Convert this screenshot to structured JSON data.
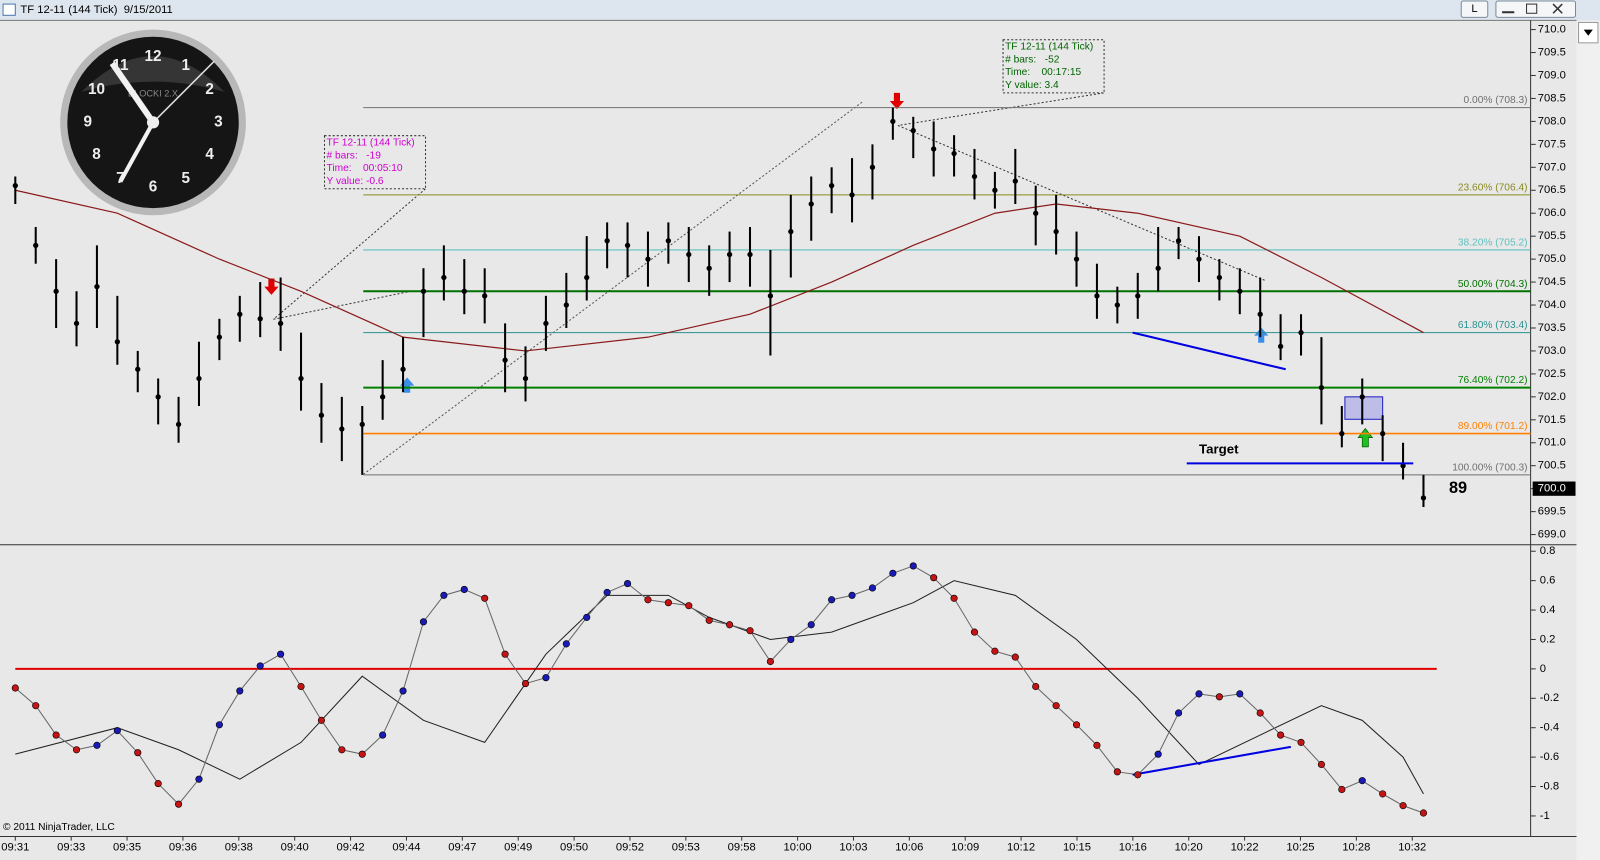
{
  "window": {
    "title": "TF 12-11 (144 Tick)  9/15/2011",
    "buttons": [
      "L"
    ]
  },
  "clock": {
    "numerals": [
      "12",
      "1",
      "2",
      "3",
      "4",
      "5",
      "6",
      "7",
      "8",
      "9",
      "10",
      "11"
    ],
    "brand": "BLOCKI 2.X"
  },
  "chart_data": [
    {
      "type": "ohlc",
      "ylim": [
        698.8,
        710.2
      ],
      "yticks": [
        {
          "value": 710,
          "label": "710.0"
        },
        709.5,
        {
          "value": 709,
          "label": "709.0"
        },
        708.5,
        {
          "value": 708,
          "label": "708.0"
        },
        707.5,
        {
          "value": 707,
          "label": "707.0"
        },
        706.5,
        {
          "value": 706,
          "label": "706.0"
        },
        705.5,
        {
          "value": 705,
          "label": "705.0"
        },
        704.5,
        {
          "value": 704,
          "label": "704.0"
        },
        703.5,
        {
          "value": 703,
          "label": "703.0"
        },
        702.5,
        {
          "value": 702,
          "label": "702.0"
        },
        701.5,
        {
          "value": 701,
          "label": "701.0"
        },
        700.5,
        {
          "value": 700,
          "label": "700.0"
        },
        699.5,
        {
          "value": 699,
          "label": "699.0"
        }
      ],
      "grid": false,
      "color": "#000000",
      "high": [
        706.8,
        705.7,
        705.0,
        704.3,
        705.3,
        704.2,
        703.0,
        702.4,
        702.0,
        703.2,
        703.7,
        704.2,
        704.5,
        704.6,
        703.4,
        702.3,
        702.0,
        701.8,
        702.8,
        703.3,
        704.8,
        705.3,
        705.0,
        704.8,
        703.6,
        703.1,
        704.2,
        704.7,
        705.5,
        705.8,
        705.8,
        705.6,
        705.8,
        705.7,
        705.3,
        705.6,
        705.7,
        705.2,
        706.4,
        706.8,
        707.0,
        707.2,
        707.5,
        708.3,
        708.1,
        708.0,
        707.7,
        707.4,
        706.9,
        707.4,
        706.6,
        706.4,
        705.6,
        704.9,
        704.4,
        704.7,
        705.7,
        705.7,
        705.5,
        705.0,
        704.8,
        704.6,
        703.8,
        703.8,
        703.3,
        701.8,
        702.4,
        701.6,
        701.0,
        700.3
      ],
      "low": [
        706.2,
        704.9,
        703.5,
        703.1,
        703.5,
        702.7,
        702.1,
        701.4,
        701.0,
        701.8,
        702.8,
        703.2,
        703.3,
        703.0,
        701.7,
        701.0,
        700.6,
        700.3,
        701.5,
        702.1,
        703.3,
        704.1,
        703.8,
        703.6,
        702.1,
        701.9,
        703.0,
        703.5,
        704.1,
        704.8,
        704.6,
        704.4,
        704.9,
        704.5,
        704.2,
        704.5,
        704.4,
        702.9,
        704.6,
        705.4,
        706.0,
        705.8,
        706.3,
        707.6,
        707.2,
        706.8,
        706.8,
        706.3,
        706.1,
        706.2,
        705.3,
        705.1,
        704.4,
        703.7,
        703.6,
        703.7,
        704.3,
        705.0,
        704.5,
        704.1,
        703.8,
        703.3,
        702.8,
        702.9,
        701.4,
        700.9,
        701.4,
        700.6,
        700.2,
        699.6
      ],
      "close": [
        706.6,
        705.3,
        704.3,
        703.6,
        704.4,
        703.2,
        702.6,
        702.0,
        701.4,
        702.4,
        703.3,
        703.8,
        703.7,
        703.6,
        702.4,
        701.6,
        701.3,
        701.4,
        702.0,
        702.6,
        704.3,
        704.6,
        704.3,
        704.2,
        702.8,
        702.4,
        703.6,
        704.0,
        704.6,
        705.4,
        705.3,
        705.0,
        705.4,
        705.1,
        704.8,
        705.1,
        705.1,
        704.2,
        705.6,
        706.2,
        706.6,
        706.4,
        707.0,
        708.0,
        707.8,
        707.4,
        707.3,
        706.8,
        706.5,
        706.7,
        706.0,
        705.6,
        705.0,
        704.2,
        704.0,
        704.2,
        704.8,
        705.4,
        705.0,
        704.6,
        704.3,
        703.8,
        703.1,
        703.4,
        702.2,
        701.2,
        702.0,
        701.2,
        700.5,
        699.8
      ],
      "ma": {
        "color": "#8b1a1a",
        "x": [
          0,
          5,
          10,
          14,
          19,
          25,
          31,
          36,
          40,
          44,
          48,
          51,
          55,
          60,
          64,
          69
        ],
        "values": [
          706.5,
          706.0,
          705.0,
          704.3,
          703.3,
          703.0,
          703.3,
          703.8,
          704.5,
          705.3,
          706.0,
          706.2,
          706.0,
          705.5,
          704.6,
          703.4
        ]
      },
      "fib_levels": [
        {
          "label": "0.00% (708.3)",
          "value": 708.3,
          "color": "#707070",
          "width": 1
        },
        {
          "label": "23.60% (706.4)",
          "value": 706.4,
          "color": "#8a8a20",
          "width": 1
        },
        {
          "label": "38.20% (705.2)",
          "value": 705.2,
          "color": "#60c0c0",
          "width": 1
        },
        {
          "label": "50.00% (704.3)",
          "value": 704.3,
          "color": "#007000",
          "width": 2
        },
        {
          "label": "61.80% (703.4)",
          "value": 703.4,
          "color": "#2a9090",
          "width": 1
        },
        {
          "label": "76.40% (702.2)",
          "value": 702.2,
          "color": "#008000",
          "width": 2
        },
        {
          "label": "89.00% (701.2)",
          "value": 701.2,
          "color": "#ff8000",
          "width": 1.5
        },
        {
          "label": "100.00% (700.3)",
          "value": 700.3,
          "color": "#707070",
          "width": 1
        }
      ],
      "trend_lines": [
        {
          "color": "#0000e0",
          "x": [
            54.75,
            62.25
          ],
          "values": [
            703.4,
            702.6
          ]
        },
        {
          "color": "#0000e0",
          "x": [
            57.4,
            68.5
          ],
          "values": [
            700.55,
            700.55
          ]
        }
      ],
      "target_label": "Target",
      "tick_counter": 89,
      "last_price": {
        "value": 700,
        "label": "700.0"
      },
      "measure_boxes": [
        {
          "color": "#d000d0",
          "lines": [
            "TF 12-11 (144 Tick)",
            "# bars:   -19",
            "Time:    00:05:10",
            "Y value: -0.6"
          ]
        },
        {
          "color": "#006400",
          "lines": [
            "TF 12-11 (144 Tick)",
            "# bars:   -52",
            "Time:    00:17:15",
            "Y value: 3.4"
          ]
        }
      ]
    },
    {
      "type": "dot-oscillator",
      "ylim": [
        -1.14,
        0.83
      ],
      "yticks": [
        0.8,
        0.6,
        0.4,
        0.2,
        0,
        -0.2,
        -0.4,
        -0.6,
        -0.8,
        -1
      ],
      "rising_color": "#1a1ab4",
      "falling_color": "#c41414",
      "values": [
        -0.13,
        -0.25,
        -0.45,
        -0.55,
        -0.52,
        -0.42,
        -0.57,
        -0.78,
        -0.92,
        -0.75,
        -0.38,
        -0.15,
        0.02,
        0.1,
        -0.12,
        -0.35,
        -0.55,
        -0.58,
        -0.45,
        -0.15,
        0.32,
        0.5,
        0.54,
        0.48,
        0.1,
        -0.1,
        -0.06,
        0.17,
        0.35,
        0.52,
        0.58,
        0.47,
        0.45,
        0.43,
        0.33,
        0.3,
        0.26,
        0.05,
        0.2,
        0.3,
        0.47,
        0.5,
        0.55,
        0.65,
        0.7,
        0.62,
        0.48,
        0.25,
        0.12,
        0.08,
        -0.12,
        -0.25,
        -0.38,
        -0.52,
        -0.7,
        -0.72,
        -0.58,
        -0.3,
        -0.17,
        -0.19,
        -0.17,
        -0.3,
        -0.45,
        -0.5,
        -0.65,
        -0.82,
        -0.76,
        -0.85,
        -0.93,
        -0.98
      ],
      "signal": {
        "color": "#202020",
        "x": [
          0,
          5,
          8,
          11,
          14,
          17,
          20,
          23,
          26,
          29,
          32,
          34,
          37,
          40,
          44,
          46,
          49,
          52,
          55,
          58,
          61,
          64,
          66,
          68,
          69
        ],
        "values": [
          -0.58,
          -0.4,
          -0.55,
          -0.75,
          -0.5,
          -0.05,
          -0.35,
          -0.5,
          0.1,
          0.5,
          0.5,
          0.35,
          0.2,
          0.25,
          0.45,
          0.6,
          0.5,
          0.2,
          -0.2,
          -0.65,
          -0.45,
          -0.25,
          -0.35,
          -0.6,
          -0.85
        ]
      },
      "ref_line": {
        "value": 0,
        "color": "#e00000"
      },
      "trend_lines": [
        {
          "color": "#0000e0",
          "x": [
            54.75,
            62.5
          ],
          "values": [
            -0.72,
            -0.53
          ]
        }
      ]
    }
  ],
  "time_axis": {
    "categories": [
      "09:31",
      "09:33",
      "09:35",
      "09:36",
      "09:38",
      "09:40",
      "09:42",
      "09:44",
      "09:47",
      "09:49",
      "09:50",
      "09:52",
      "09:53",
      "09:58",
      "10:00",
      "10:03",
      "10:06",
      "10:09",
      "10:12",
      "10:15",
      "10:16",
      "10:20",
      "10:22",
      "10:25",
      "10:28",
      "10:32"
    ]
  },
  "footer": "© 2011 NinjaTrader, LLC"
}
